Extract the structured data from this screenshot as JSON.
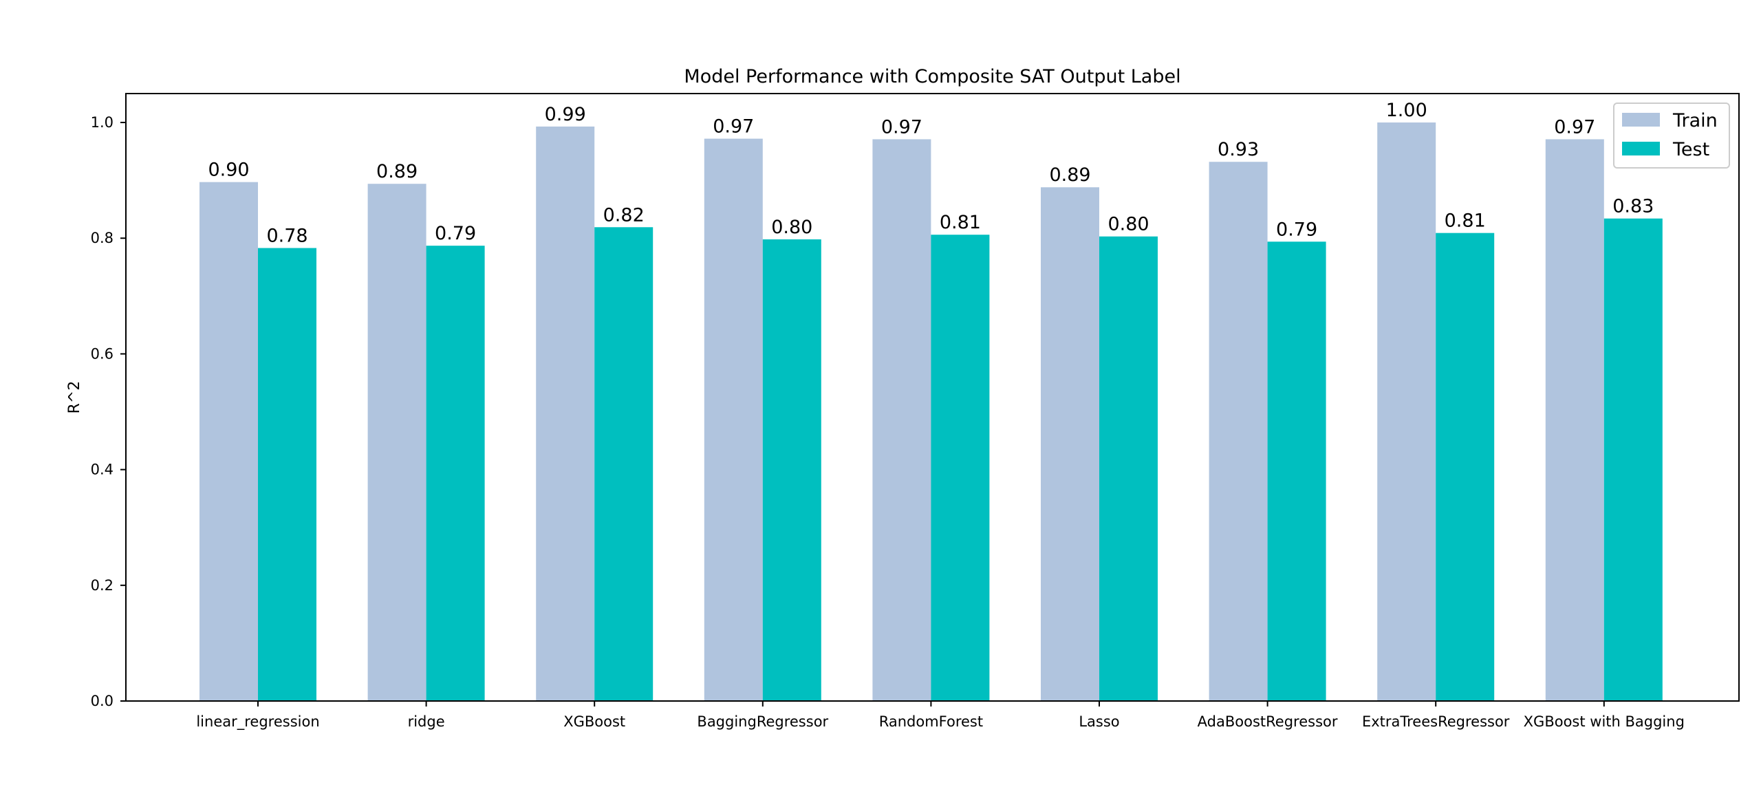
{
  "chart_data": {
    "type": "bar",
    "title": "Model Performance with Composite SAT Output Label",
    "xlabel": "",
    "ylabel": "R^2",
    "ylim": [
      0,
      1.05
    ],
    "yticks": [
      0.0,
      0.2,
      0.4,
      0.6,
      0.8,
      1.0
    ],
    "ytick_labels": [
      "0.0",
      "0.2",
      "0.4",
      "0.6",
      "0.8",
      "1.0"
    ],
    "categories": [
      "linear_regression",
      "ridge",
      "XGBoost",
      "BaggingRegressor",
      "RandomForest",
      "Lasso",
      "AdaBoostRegressor",
      "ExtraTreesRegressor",
      "XGBoost with Bagging"
    ],
    "series": [
      {
        "name": "Train",
        "color": "#b0c4de",
        "values": [
          0.897,
          0.894,
          0.993,
          0.972,
          0.971,
          0.888,
          0.932,
          1.0,
          0.971
        ],
        "labels": [
          "0.90",
          "0.89",
          "0.99",
          "0.97",
          "0.97",
          "0.89",
          "0.93",
          "1.00",
          "0.97"
        ]
      },
      {
        "name": "Test",
        "color": "#00bfbf",
        "values": [
          0.783,
          0.787,
          0.819,
          0.798,
          0.806,
          0.803,
          0.794,
          0.809,
          0.834
        ],
        "labels": [
          "0.78",
          "0.79",
          "0.82",
          "0.80",
          "0.81",
          "0.80",
          "0.79",
          "0.81",
          "0.83"
        ]
      }
    ],
    "grid": false,
    "legend_position": "top-right"
  }
}
